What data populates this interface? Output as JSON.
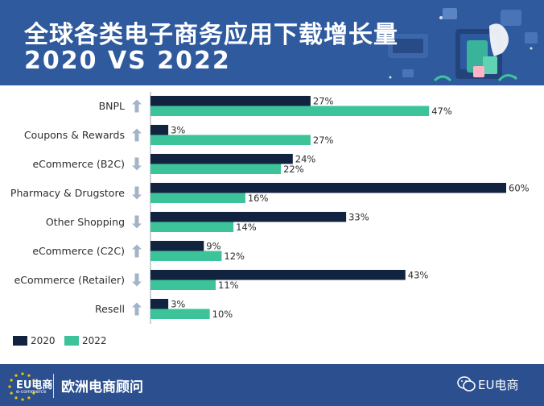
{
  "header": {
    "title_line1": "全球各类电子商务应用下载增长量",
    "title_line2": "2020 VS 2022"
  },
  "colors": {
    "header_bg": "#2f5a9e",
    "footer_bg": "#2b4f8f",
    "series_2020": "#12233f",
    "series_2022": "#3dc39a",
    "arrow": "#a3b4c8"
  },
  "chart_data": {
    "type": "bar",
    "orientation": "horizontal",
    "categories": [
      "BNPL",
      "Coupons & Rewards",
      "eCommerce (B2C)",
      "Pharmacy & Drugstore",
      "Other Shopping",
      "eCommerce (C2C)",
      "eCommerce (Retailer)",
      "Resell"
    ],
    "trend": [
      "up",
      "up",
      "down",
      "down",
      "down",
      "up",
      "down",
      "up"
    ],
    "series": [
      {
        "name": "2020",
        "values": [
          27,
          3,
          24,
          60,
          33,
          9,
          43,
          3
        ]
      },
      {
        "name": "2022",
        "values": [
          47,
          27,
          22,
          16,
          14,
          12,
          11,
          10
        ]
      }
    ],
    "value_suffix": "%",
    "xlim": [
      0,
      60
    ],
    "legend": "bottom-left",
    "grid": false
  },
  "footer": {
    "logo_text": "EU电商",
    "logo_subtext": "e-commerce",
    "brand": "欧洲电商顾问",
    "wechat_account": "EU电商",
    "wechat_icon": "wechat-icon"
  }
}
